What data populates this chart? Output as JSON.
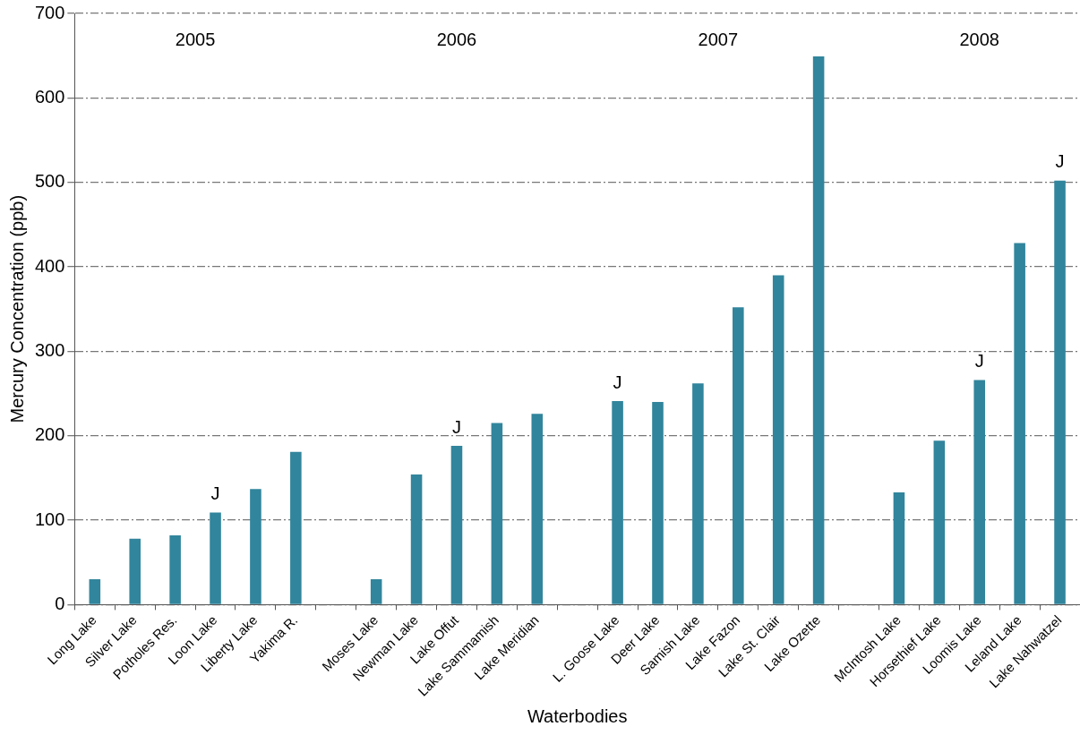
{
  "chart_data": {
    "type": "bar",
    "xlabel": "Waterbodies",
    "ylabel": "Mercury Concentration (ppb)",
    "categories": [
      "Long Lake",
      "Silver Lake",
      "Potholes Res.",
      "Loon Lake",
      "Liberty Lake",
      "Yakima R.",
      null,
      "Moses Lake",
      "Newman Lake",
      "Lake Offut",
      "Lake Sammamish",
      "Lake Meridian",
      null,
      "L. Goose Lake",
      "Deer Lake",
      "Samish Lake",
      "Lake Fazon",
      "Lake St. Clair",
      "Lake Ozette",
      null,
      "McIntosh Lake",
      "Horsethief Lake",
      "Loomis Lake",
      "Leland Lake",
      "Lake Nahwatzel"
    ],
    "values": [
      30,
      78,
      82,
      109,
      137,
      181,
      null,
      30,
      154,
      188,
      215,
      226,
      null,
      241,
      240,
      262,
      352,
      390,
      649,
      null,
      133,
      194,
      266,
      428,
      502
    ],
    "value_labels": [
      null,
      null,
      null,
      "J",
      null,
      null,
      null,
      null,
      null,
      "J",
      null,
      null,
      null,
      "J",
      null,
      null,
      null,
      null,
      null,
      null,
      null,
      null,
      "J",
      null,
      "J"
    ],
    "color": "#31859c",
    "annotations": [
      "2005",
      "2006",
      "2007",
      "2008"
    ],
    "ylim": [
      0,
      700
    ],
    "yticks": [
      0,
      100,
      200,
      300,
      400,
      500,
      600,
      700
    ],
    "grid": "y",
    "legend": false
  }
}
